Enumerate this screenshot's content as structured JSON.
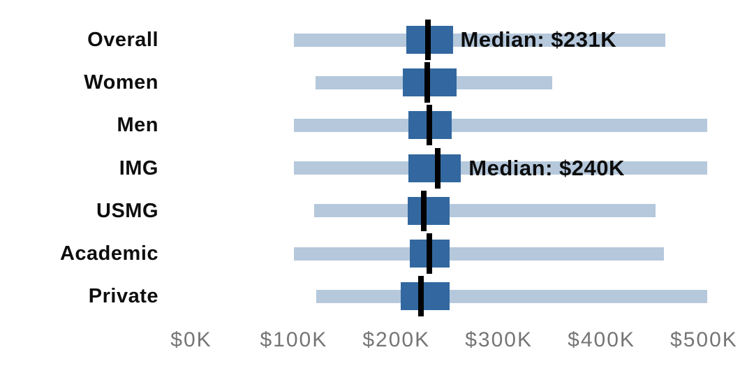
{
  "chart_data": {
    "type": "box",
    "orientation": "horizontal",
    "title": "",
    "unit": "USD thousands",
    "categories": [
      "Overall",
      "Women",
      "Men",
      "IMG",
      "USMG",
      "Academic",
      "Private"
    ],
    "series": [
      {
        "label": "Overall",
        "min": 100,
        "q1": 210,
        "median": 231,
        "q3": 255,
        "max": 462,
        "annotation": "Median: $231K"
      },
      {
        "label": "Women",
        "min": 121,
        "q1": 206,
        "median": 230,
        "q3": 259,
        "max": 352,
        "annotation": ""
      },
      {
        "label": "Men",
        "min": 100,
        "q1": 212,
        "median": 232,
        "q3": 254,
        "max": 503,
        "annotation": ""
      },
      {
        "label": "IMG",
        "min": 100,
        "q1": 212,
        "median": 240,
        "q3": 263,
        "max": 503,
        "annotation": "Median: $240K"
      },
      {
        "label": "USMG",
        "min": 120,
        "q1": 211,
        "median": 227,
        "q3": 252,
        "max": 453,
        "annotation": ""
      },
      {
        "label": "Academic",
        "min": 100,
        "q1": 213,
        "median": 232,
        "q3": 252,
        "max": 461,
        "annotation": ""
      },
      {
        "label": "Private",
        "min": 122,
        "q1": 204,
        "median": 224,
        "q3": 252,
        "max": 503,
        "annotation": ""
      }
    ],
    "x_axis": {
      "min": 0,
      "max": 540,
      "ticks": [
        {
          "value": 0,
          "label": "$0K"
        },
        {
          "value": 100,
          "label": "$100K"
        },
        {
          "value": 200,
          "label": "$200K"
        },
        {
          "value": 300,
          "label": "$300K"
        },
        {
          "value": 400,
          "label": "$400K"
        },
        {
          "value": 500,
          "label": "$500K"
        }
      ]
    },
    "grid": false,
    "legend": null,
    "colors": {
      "range_bar": "#b5c8dc",
      "box": "#32689f",
      "median_line": "#000000",
      "axis_text": "#757575",
      "label_text": "#0d0d0d"
    }
  }
}
